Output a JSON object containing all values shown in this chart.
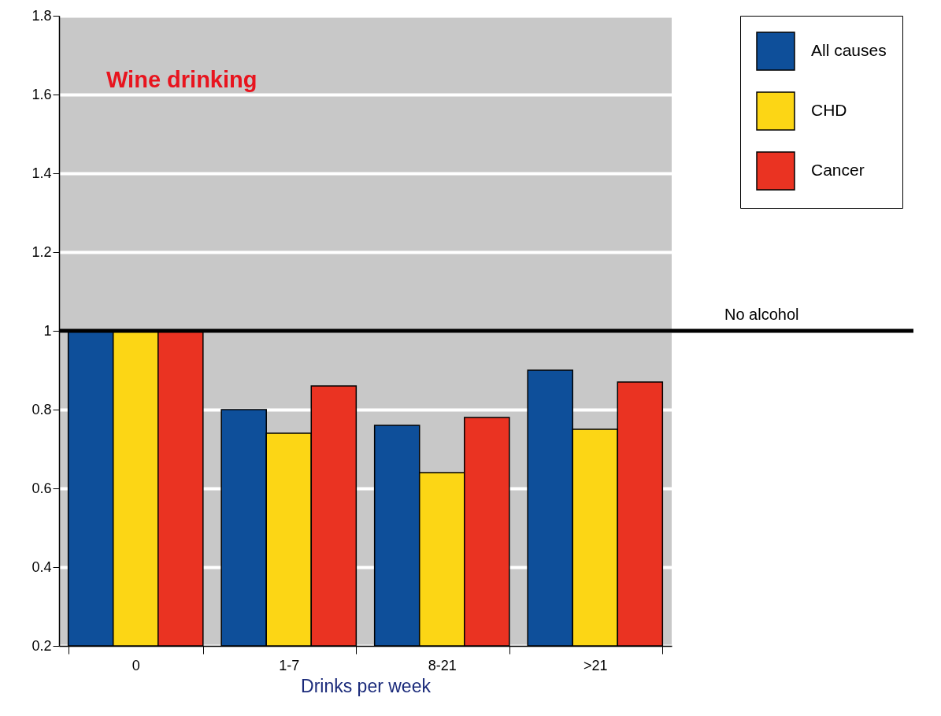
{
  "chart_data": {
    "type": "bar",
    "xlabel": "Drinks per week",
    "categories": [
      "0",
      "1-7",
      "8-21",
      ">21"
    ],
    "series": [
      {
        "name": "All causes",
        "color": "#0e4f9a",
        "values": [
          1.0,
          0.8,
          0.76,
          0.9
        ]
      },
      {
        "name": "CHD",
        "color": "#fcd615",
        "values": [
          1.0,
          0.74,
          0.64,
          0.75
        ]
      },
      {
        "name": "Cancer",
        "color": "#ea3322",
        "values": [
          1.0,
          0.86,
          0.78,
          0.87
        ]
      }
    ],
    "ylim": [
      0.2,
      1.8
    ],
    "yticks": [
      0.2,
      0.4,
      0.6,
      0.8,
      1,
      1.2,
      1.4,
      1.6,
      1.8
    ],
    "grid": "y",
    "legend": "top right",
    "ref_lines": [
      {
        "axis": "y",
        "value": 1,
        "label": "No alcohol",
        "color": "#000000"
      }
    ],
    "annotations": [
      "Wine drinking"
    ]
  }
}
